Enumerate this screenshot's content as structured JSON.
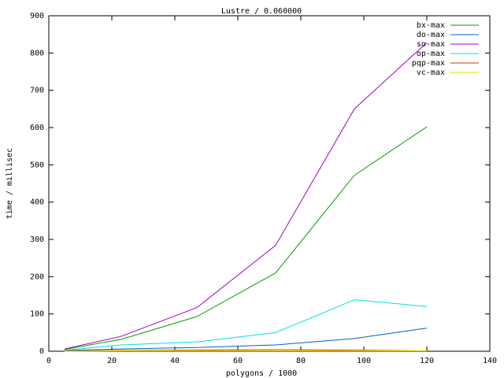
{
  "chart_data": {
    "type": "line",
    "title": "Lustre / 0.060000",
    "x_label": "polygons / 1000",
    "y_label": "time / millisec",
    "x": [
      5,
      23,
      47,
      72,
      97,
      120
    ],
    "series": [
      {
        "name": "bx-max",
        "color": "#00a000",
        "values": [
          5,
          32,
          93,
          210,
          472,
          602
        ]
      },
      {
        "name": "do-max",
        "color": "#0060c0",
        "values": [
          2,
          6,
          10,
          17,
          34,
          62
        ]
      },
      {
        "name": "so-max",
        "color": "#a000c0",
        "values": [
          6,
          40,
          117,
          284,
          650,
          828
        ]
      },
      {
        "name": "op-max",
        "color": "#00e0e0",
        "values": [
          3,
          17,
          25,
          50,
          138,
          120
        ]
      },
      {
        "name": "pqp-max",
        "color": "#c04000",
        "values": [
          1,
          2,
          3,
          4,
          3,
          1
        ]
      },
      {
        "name": "vc-max",
        "color": "#e0e000",
        "values": [
          0,
          1,
          1,
          1,
          1,
          1
        ]
      }
    ],
    "xlim": [
      0,
      140
    ],
    "xticks": [
      0,
      20,
      40,
      60,
      80,
      100,
      120,
      140
    ],
    "ylim": [
      0,
      900
    ],
    "yticks": [
      0,
      100,
      200,
      300,
      400,
      500,
      600,
      700,
      800,
      900
    ],
    "legend": "upper right"
  }
}
